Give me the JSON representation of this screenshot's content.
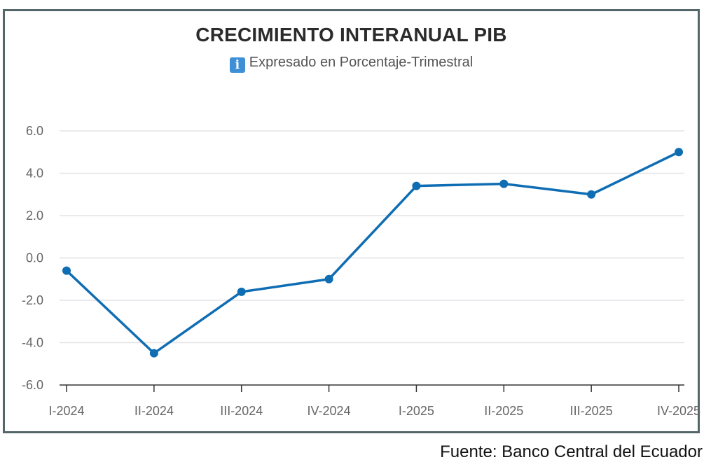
{
  "chart_data": {
    "type": "line",
    "title": "CRECIMIENTO INTERANUAL PIB",
    "subtitle": "Expresado en Porcentaje-Trimestral",
    "subtitle_icon": "info-icon",
    "categories": [
      "I-2024",
      "II-2024",
      "III-2024",
      "IV-2024",
      "I-2025",
      "II-2025",
      "III-2025",
      "IV-2025"
    ],
    "series": [
      {
        "values": [
          -0.6,
          -4.5,
          -1.6,
          -1.0,
          3.4,
          3.5,
          3.0,
          5.0
        ],
        "color": "#0f6db3"
      }
    ],
    "ylim": [
      -6,
      6
    ],
    "yticks": [
      -6,
      -4,
      -2,
      0,
      2,
      4,
      6
    ],
    "ytick_labels": [
      "-6.0",
      "-4.0",
      "-2.0",
      "0.0",
      "2.0",
      "4.0",
      "6.0"
    ],
    "grid": true,
    "legend": "none"
  },
  "source_note": "Fuente: Banco Central del Ecuador",
  "colors": {
    "frame": "#55666a",
    "grid": "#e3e3e8",
    "axis": "#333333",
    "line": "#0f6db3"
  }
}
